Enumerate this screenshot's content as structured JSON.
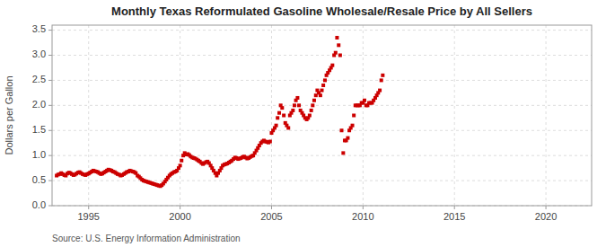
{
  "chart_data": {
    "type": "scatter",
    "title": "Monthly Texas Reformulated Gasoline Wholesale/Resale Price by All Sellers",
    "ylabel": "Dollars per Gallon",
    "annotations": [
      "Source: U.S. Energy Information Administration"
    ],
    "color": "#cc0000",
    "marker": "square",
    "grid": true,
    "xlim": [
      1993.0,
      2022.5
    ],
    "ylim": [
      0.0,
      3.6
    ],
    "xticks": [
      1995,
      2000,
      2005,
      2010,
      2015,
      2020
    ],
    "yticks": [
      {
        "value": 0.0,
        "label": "0.0"
      },
      0.5,
      {
        "value": 1.0,
        "label": "1.0"
      },
      1.5,
      {
        "value": 2.0,
        "label": "2.0"
      },
      2.5,
      {
        "value": 3.0,
        "label": "3.0"
      },
      3.5
    ],
    "x": [
      1993.25,
      1993.33,
      1993.42,
      1993.5,
      1993.58,
      1993.67,
      1993.75,
      1993.83,
      1993.92,
      1994.0,
      1994.08,
      1994.17,
      1994.25,
      1994.33,
      1994.42,
      1994.5,
      1994.58,
      1994.67,
      1994.75,
      1994.83,
      1994.92,
      1995.0,
      1995.08,
      1995.17,
      1995.25,
      1995.33,
      1995.42,
      1995.5,
      1995.58,
      1995.67,
      1995.75,
      1995.83,
      1995.92,
      1996.0,
      1996.08,
      1996.17,
      1996.25,
      1996.33,
      1996.42,
      1996.5,
      1996.58,
      1996.67,
      1996.75,
      1996.83,
      1996.92,
      1997.0,
      1997.08,
      1997.17,
      1997.25,
      1997.33,
      1997.42,
      1997.5,
      1997.58,
      1997.67,
      1997.75,
      1997.83,
      1997.92,
      1998.0,
      1998.08,
      1998.17,
      1998.25,
      1998.33,
      1998.42,
      1998.5,
      1998.58,
      1998.67,
      1998.75,
      1998.83,
      1998.92,
      1999.0,
      1999.08,
      1999.17,
      1999.25,
      1999.33,
      1999.42,
      1999.5,
      1999.58,
      1999.67,
      1999.75,
      1999.83,
      1999.92,
      2000.0,
      2000.08,
      2000.17,
      2000.25,
      2000.33,
      2000.42,
      2000.5,
      2000.58,
      2000.67,
      2000.75,
      2000.83,
      2000.92,
      2001.0,
      2001.08,
      2001.17,
      2001.25,
      2001.33,
      2001.42,
      2001.5,
      2001.58,
      2001.67,
      2001.75,
      2001.83,
      2001.92,
      2002.0,
      2002.08,
      2002.17,
      2002.25,
      2002.33,
      2002.42,
      2002.5,
      2002.58,
      2002.67,
      2002.75,
      2002.83,
      2002.92,
      2003.0,
      2003.08,
      2003.17,
      2003.25,
      2003.33,
      2003.42,
      2003.5,
      2003.58,
      2003.67,
      2003.75,
      2003.83,
      2003.92,
      2004.0,
      2004.08,
      2004.17,
      2004.25,
      2004.33,
      2004.42,
      2004.5,
      2004.58,
      2004.67,
      2004.75,
      2004.83,
      2004.92,
      2005.0,
      2005.08,
      2005.17,
      2005.25,
      2005.33,
      2005.42,
      2005.5,
      2005.58,
      2005.67,
      2005.75,
      2005.83,
      2005.92,
      2006.0,
      2006.08,
      2006.17,
      2006.25,
      2006.33,
      2006.42,
      2006.5,
      2006.58,
      2006.67,
      2006.75,
      2006.83,
      2006.92,
      2007.0,
      2007.08,
      2007.17,
      2007.25,
      2007.33,
      2007.42,
      2007.5,
      2007.58,
      2007.67,
      2007.75,
      2007.83,
      2007.92,
      2008.0,
      2008.08,
      2008.17,
      2008.25,
      2008.33,
      2008.42,
      2008.5,
      2008.58,
      2008.67,
      2008.75,
      2008.83,
      2008.92,
      2009.0,
      2009.08,
      2009.17,
      2009.25,
      2009.33,
      2009.42,
      2009.5,
      2009.58,
      2009.67,
      2009.75,
      2009.83,
      2009.92,
      2010.0,
      2010.08,
      2010.17,
      2010.25,
      2010.33,
      2010.42,
      2010.5,
      2010.58,
      2010.67,
      2010.75,
      2010.83,
      2010.92,
      2011.0,
      2011.08
    ],
    "values": [
      0.6,
      0.62,
      0.63,
      0.65,
      0.63,
      0.61,
      0.6,
      0.64,
      0.66,
      0.65,
      0.63,
      0.61,
      0.62,
      0.64,
      0.66,
      0.67,
      0.65,
      0.63,
      0.62,
      0.61,
      0.63,
      0.64,
      0.66,
      0.68,
      0.7,
      0.69,
      0.68,
      0.67,
      0.65,
      0.63,
      0.64,
      0.66,
      0.68,
      0.7,
      0.72,
      0.71,
      0.7,
      0.68,
      0.67,
      0.65,
      0.63,
      0.62,
      0.6,
      0.61,
      0.63,
      0.65,
      0.67,
      0.68,
      0.7,
      0.69,
      0.68,
      0.67,
      0.65,
      0.6,
      0.58,
      0.55,
      0.52,
      0.5,
      0.49,
      0.48,
      0.47,
      0.46,
      0.45,
      0.44,
      0.43,
      0.42,
      0.41,
      0.4,
      0.39,
      0.41,
      0.44,
      0.48,
      0.52,
      0.56,
      0.6,
      0.63,
      0.65,
      0.67,
      0.68,
      0.7,
      0.75,
      0.8,
      0.9,
      1.0,
      1.05,
      1.02,
      1.03,
      1.01,
      0.98,
      0.96,
      0.95,
      0.94,
      0.92,
      0.9,
      0.88,
      0.85,
      0.83,
      0.85,
      0.87,
      0.88,
      0.85,
      0.8,
      0.75,
      0.7,
      0.65,
      0.6,
      0.65,
      0.7,
      0.75,
      0.8,
      0.82,
      0.83,
      0.84,
      0.86,
      0.88,
      0.9,
      0.93,
      0.96,
      0.95,
      0.93,
      0.94,
      0.95,
      0.97,
      0.98,
      0.96,
      0.94,
      0.95,
      0.97,
      0.99,
      1.0,
      1.05,
      1.1,
      1.15,
      1.2,
      1.25,
      1.28,
      1.3,
      1.28,
      1.27,
      1.26,
      1.28,
      1.45,
      1.5,
      1.55,
      1.6,
      1.75,
      1.85,
      2.0,
      1.95,
      1.8,
      1.65,
      1.6,
      1.55,
      1.8,
      1.85,
      1.9,
      2.0,
      2.1,
      2.15,
      2.0,
      1.9,
      1.85,
      1.8,
      1.75,
      1.72,
      1.75,
      1.8,
      1.9,
      2.0,
      2.1,
      2.2,
      2.3,
      2.25,
      2.2,
      2.3,
      2.4,
      2.5,
      2.6,
      2.65,
      2.7,
      2.75,
      2.8,
      3.0,
      3.05,
      3.35,
      3.2,
      3.0,
      1.5,
      1.05,
      1.3,
      1.3,
      1.35,
      1.5,
      1.55,
      1.6,
      1.8,
      2.0,
      2.0,
      2.0,
      2.0,
      2.05,
      2.05,
      2.1,
      2.0,
      2.0,
      2.05,
      2.05,
      2.05,
      2.1,
      2.15,
      2.2,
      2.25,
      2.3,
      2.5,
      2.6
    ]
  }
}
